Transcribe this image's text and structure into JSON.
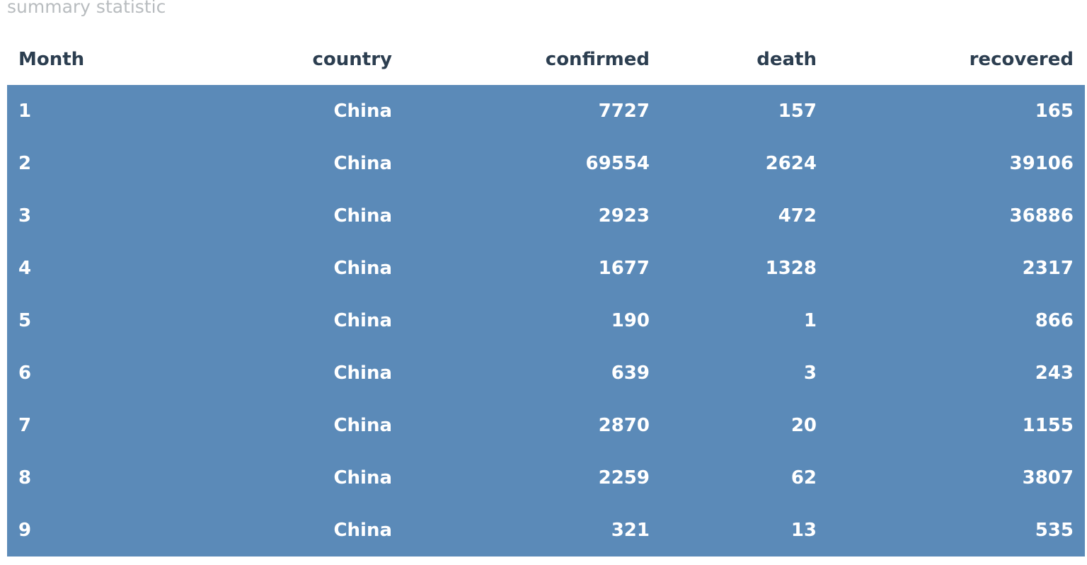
{
  "caption": "summary statistic",
  "table": {
    "columns": [
      "Month",
      "country",
      "confirmed",
      "death",
      "recovered"
    ],
    "rows": [
      [
        "1",
        "China",
        "7727",
        "157",
        "165"
      ],
      [
        "2",
        "China",
        "69554",
        "2624",
        "39106"
      ],
      [
        "3",
        "China",
        "2923",
        "472",
        "36886"
      ],
      [
        "4",
        "China",
        "1677",
        "1328",
        "2317"
      ],
      [
        "5",
        "China",
        "190",
        "1",
        "866"
      ],
      [
        "6",
        "China",
        "639",
        "3",
        "243"
      ],
      [
        "7",
        "China",
        "2870",
        "20",
        "1155"
      ],
      [
        "8",
        "China",
        "2259",
        "62",
        "3807"
      ],
      [
        "9",
        "China",
        "321",
        "13",
        "535"
      ]
    ]
  },
  "colors": {
    "row_background": "#5b8ab8",
    "row_text": "#ffffff",
    "header_text": "#2c3e50",
    "caption_text": "#b8bcbf"
  }
}
